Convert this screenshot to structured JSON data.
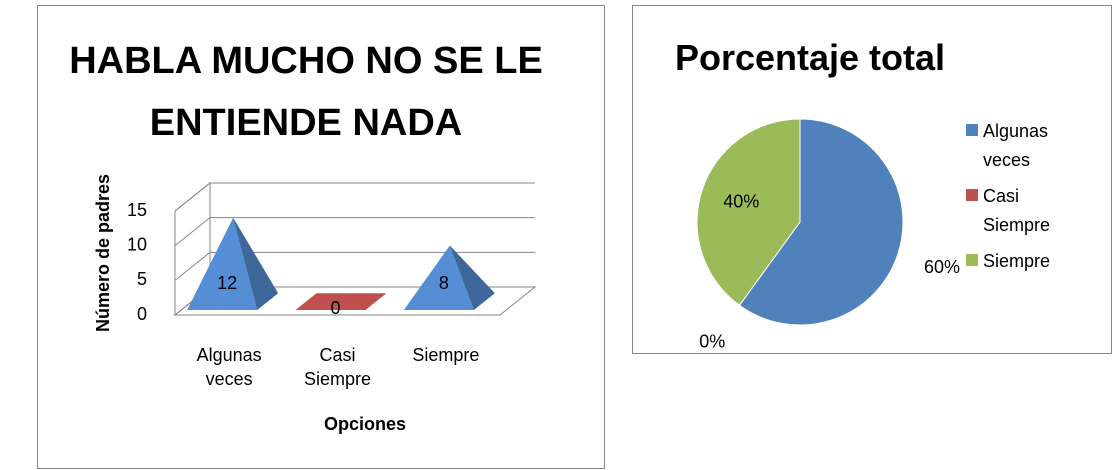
{
  "chart_data": [
    {
      "type": "bar3d",
      "title": "HABLA MUCHO NO SE LE ENTIENDE NADA",
      "categories": [
        "Algunas veces",
        "Casi Siempre",
        "Siempre"
      ],
      "values": [
        12,
        0,
        8
      ],
      "colors": [
        "#558ed5",
        "#c0504d",
        "#558ed5"
      ],
      "xlabel": "Opciones",
      "ylabel": "Número de padres",
      "ylim": [
        0,
        15
      ],
      "yticks": [
        0,
        5,
        10,
        15
      ],
      "grid": true
    },
    {
      "type": "pie",
      "title": "Porcentaje total",
      "categories": [
        "Algunas veces",
        "Casi Siempre",
        "Siempre"
      ],
      "values": [
        60,
        0,
        40
      ],
      "value_labels": [
        "60%",
        "0%",
        "40%"
      ],
      "colors": [
        "#4f81bd",
        "#c0504d",
        "#9bbb59"
      ],
      "legend": "right"
    }
  ]
}
